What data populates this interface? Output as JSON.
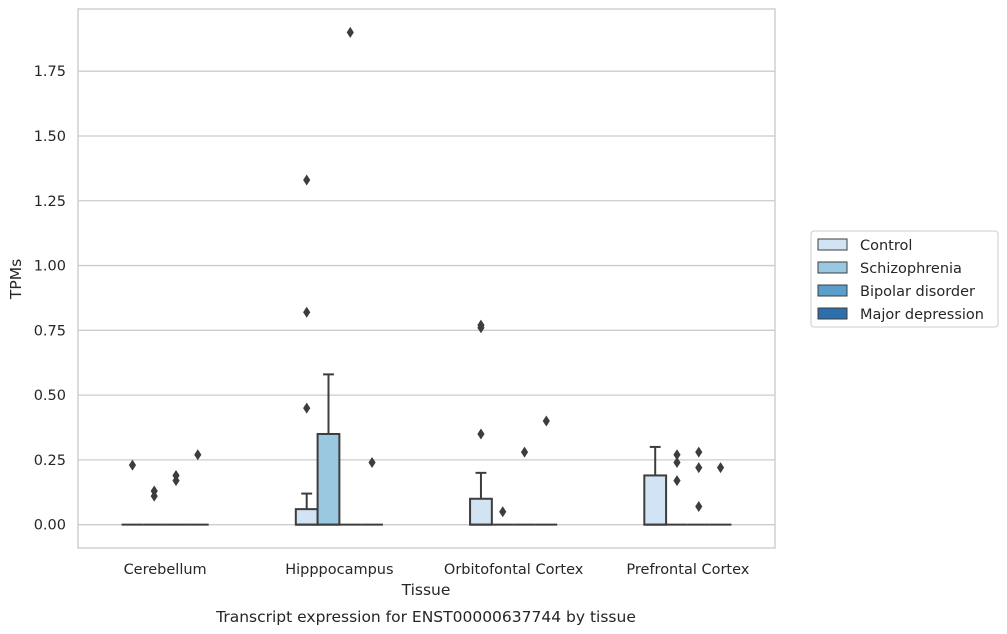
{
  "chart_data": {
    "type": "box",
    "caption": "Transcript expression for ENST00000637744 by tissue",
    "xlabel": "Tissue",
    "ylabel": "TPMs",
    "ylim": [
      -0.09,
      1.99
    ],
    "yticks": [
      "0.00",
      "0.25",
      "0.50",
      "0.75",
      "1.00",
      "1.25",
      "1.50",
      "1.75"
    ],
    "grid": true,
    "legend_position": "right",
    "categories": [
      "Cerebellum",
      "Hipppocampus",
      "Orbitofontal Cortex",
      "Prefrontal Cortex"
    ],
    "series": [
      {
        "name": "Control",
        "color": "#d2e3f3",
        "boxes": [
          {
            "q1": 0,
            "median": 0,
            "q3": 0,
            "whisker_low": 0,
            "whisker_high": 0,
            "outliers": [
              0.23
            ]
          },
          {
            "q1": 0,
            "median": 0,
            "q3": 0.06,
            "whisker_low": 0,
            "whisker_high": 0.12,
            "outliers": [
              0.45,
              0.82,
              1.33
            ]
          },
          {
            "q1": 0,
            "median": 0,
            "q3": 0.1,
            "whisker_low": 0,
            "whisker_high": 0.2,
            "outliers": [
              0.35,
              0.76,
              0.77
            ]
          },
          {
            "q1": 0,
            "median": 0,
            "q3": 0.19,
            "whisker_low": 0,
            "whisker_high": 0.3,
            "outliers": []
          }
        ]
      },
      {
        "name": "Schizophrenia",
        "color": "#9ac8e0",
        "boxes": [
          {
            "q1": 0,
            "median": 0,
            "q3": 0,
            "whisker_low": 0,
            "whisker_high": 0,
            "outliers": [
              0.11,
              0.13
            ]
          },
          {
            "q1": 0,
            "median": 0,
            "q3": 0.35,
            "whisker_low": 0,
            "whisker_high": 0.58,
            "outliers": []
          },
          {
            "q1": 0,
            "median": 0,
            "q3": 0,
            "whisker_low": 0,
            "whisker_high": 0,
            "outliers": [
              0.05
            ]
          },
          {
            "q1": 0,
            "median": 0,
            "q3": 0,
            "whisker_low": 0,
            "whisker_high": 0,
            "outliers": [
              0.17,
              0.24,
              0.27
            ]
          }
        ]
      },
      {
        "name": "Bipolar disorder",
        "color": "#5a9ecc",
        "boxes": [
          {
            "q1": 0,
            "median": 0,
            "q3": 0,
            "whisker_low": 0,
            "whisker_high": 0,
            "outliers": [
              0.17,
              0.19
            ]
          },
          {
            "q1": 0,
            "median": 0,
            "q3": 0,
            "whisker_low": 0,
            "whisker_high": 0,
            "outliers": [
              1.9
            ]
          },
          {
            "q1": 0,
            "median": 0,
            "q3": 0,
            "whisker_low": 0,
            "whisker_high": 0,
            "outliers": [
              0.28
            ]
          },
          {
            "q1": 0,
            "median": 0,
            "q3": 0,
            "whisker_low": 0,
            "whisker_high": 0,
            "outliers": [
              0.07,
              0.22,
              0.28
            ]
          }
        ]
      },
      {
        "name": "Major depression",
        "color": "#2c6fab",
        "boxes": [
          {
            "q1": 0,
            "median": 0,
            "q3": 0,
            "whisker_low": 0,
            "whisker_high": 0,
            "outliers": [
              0.27
            ]
          },
          {
            "q1": 0,
            "median": 0,
            "q3": 0,
            "whisker_low": 0,
            "whisker_high": 0,
            "outliers": [
              0.24
            ]
          },
          {
            "q1": 0,
            "median": 0,
            "q3": 0,
            "whisker_low": 0,
            "whisker_high": 0,
            "outliers": [
              0.4
            ]
          },
          {
            "q1": 0,
            "median": 0,
            "q3": 0,
            "whisker_low": 0,
            "whisker_high": 0,
            "outliers": [
              0.22
            ]
          }
        ]
      }
    ],
    "style": {
      "grid_color": "#cccccc",
      "frame_color": "#cccccc",
      "line_color": "#3d3d3d",
      "marker": "diamond"
    }
  }
}
